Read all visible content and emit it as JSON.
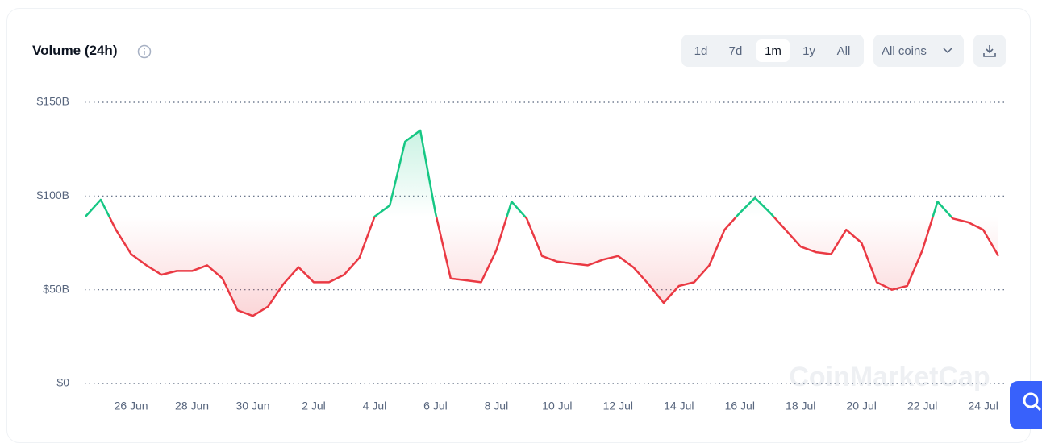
{
  "header": {
    "title": "Volume (24h)",
    "periods": [
      "1d",
      "7d",
      "1m",
      "1y",
      "All"
    ],
    "coins_filter": "All coins"
  },
  "watermark": "CoinMarketCap",
  "chart_data": {
    "type": "line",
    "categories": [
      null,
      null,
      null,
      "26 Jun",
      null,
      null,
      null,
      "28 Jun",
      null,
      null,
      null,
      "30 Jun",
      null,
      null,
      null,
      "2 Jul",
      null,
      null,
      null,
      "4 Jul",
      null,
      null,
      null,
      "6 Jul",
      null,
      null,
      null,
      "8 Jul",
      null,
      null,
      null,
      "10 Jul",
      null,
      null,
      null,
      "12 Jul",
      null,
      null,
      null,
      "14 Jul",
      null,
      null,
      null,
      "16 Jul",
      null,
      null,
      null,
      "18 Jul",
      null,
      null,
      null,
      "20 Jul",
      null,
      null,
      null,
      "22 Jul",
      null,
      null,
      null,
      "24 Jul",
      null
    ],
    "values": [
      89,
      98,
      82,
      69,
      63,
      58,
      60,
      60,
      63,
      56,
      39,
      36,
      41,
      53,
      62,
      54,
      54,
      58,
      67,
      89,
      95,
      129,
      135,
      91,
      56,
      55,
      54,
      71,
      97,
      88,
      68,
      65,
      64,
      63,
      66,
      68,
      62,
      53,
      43,
      52,
      54,
      63,
      82,
      91,
      99,
      91,
      82,
      73,
      70,
      69,
      82,
      75,
      54,
      50,
      52,
      71,
      97,
      88,
      86,
      82,
      68
    ],
    "baseline": 89,
    "up_color": "#16c784",
    "down_color": "#ea3943",
    "ylim": [
      0,
      150
    ],
    "yticks": [
      {
        "value": 0,
        "label": "$0"
      },
      {
        "value": 50,
        "label": "$50B"
      },
      {
        "value": 100,
        "label": "$100B"
      },
      {
        "value": 150,
        "label": "$150B"
      }
    ],
    "grid": true
  }
}
